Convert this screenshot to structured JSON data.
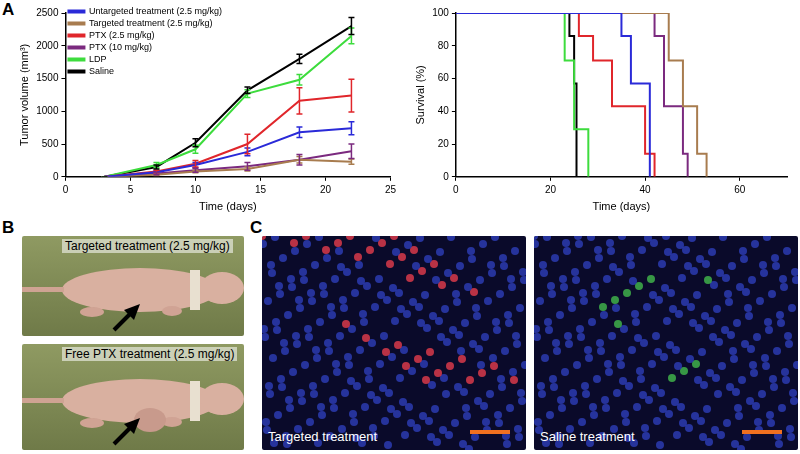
{
  "chart_data": [
    {
      "type": "line",
      "x_label": "Time (days)",
      "y_label": "Tumor volume (mm³)",
      "xlim": [
        0,
        25
      ],
      "xticks": [
        0,
        5,
        10,
        15,
        20,
        25
      ],
      "ylim": [
        0,
        2500
      ],
      "yticks": [
        0,
        500,
        1000,
        1500,
        2000,
        2500
      ],
      "grid": false,
      "legend": "upper left",
      "x": [
        3,
        7,
        10,
        14,
        18,
        22
      ],
      "series": [
        {
          "name": "Untargeted treatment (2.5 mg/kg)",
          "color": "#2a2ad8",
          "values": [
            0,
            70,
            180,
            380,
            680,
            740
          ],
          "errors": [
            0,
            20,
            40,
            60,
            80,
            100
          ]
        },
        {
          "name": "Targeted treatment (2.5 mg/kg)",
          "color": "#a87c4f",
          "values": [
            0,
            30,
            80,
            120,
            260,
            230
          ],
          "errors": [
            0,
            10,
            20,
            30,
            50,
            40
          ]
        },
        {
          "name": "PTX (2.5 mg/kg)",
          "color": "#e0262b",
          "values": [
            0,
            80,
            200,
            500,
            1160,
            1240
          ],
          "errors": [
            0,
            20,
            50,
            150,
            200,
            250
          ]
        },
        {
          "name": "PTX (10 mg/kg)",
          "color": "#7b2a7f",
          "values": [
            0,
            50,
            100,
            160,
            260,
            390
          ],
          "errors": [
            0,
            20,
            30,
            60,
            80,
            110
          ]
        },
        {
          "name": "LDP",
          "color": "#3ddc3d",
          "values": [
            0,
            180,
            420,
            1270,
            1480,
            2150
          ],
          "errors": [
            0,
            40,
            60,
            60,
            80,
            120
          ]
        },
        {
          "name": "Saline",
          "color": "#000000",
          "values": [
            0,
            150,
            520,
            1320,
            1800,
            2300
          ],
          "errors": [
            0,
            30,
            60,
            50,
            70,
            130
          ]
        }
      ]
    },
    {
      "type": "line",
      "x_label": "Time (days)",
      "y_label": "Survival (%)",
      "xlim": [
        0,
        70
      ],
      "xticks": [
        0,
        20,
        40,
        60
      ],
      "ylim": [
        0,
        100
      ],
      "yticks": [
        0,
        20,
        40,
        60,
        80,
        100
      ],
      "grid": false,
      "line_style": "step",
      "series": [
        {
          "color": "#2a2ad8",
          "x": [
            0,
            35,
            37,
            41
          ],
          "values": [
            100,
            86,
            57,
            0
          ]
        },
        {
          "color": "#a87c4f",
          "x": [
            0,
            45,
            48,
            51,
            53
          ],
          "values": [
            100,
            71,
            43,
            14,
            0
          ]
        },
        {
          "color": "#e0262b",
          "x": [
            0,
            26,
            29,
            33,
            40,
            42
          ],
          "values": [
            100,
            86,
            71,
            43,
            14,
            0
          ]
        },
        {
          "color": "#7b2a7f",
          "x": [
            0,
            42,
            44,
            48,
            49
          ],
          "values": [
            100,
            86,
            43,
            14,
            0
          ]
        },
        {
          "color": "#3ddc3d",
          "x": [
            0,
            23,
            25,
            28
          ],
          "values": [
            100,
            71,
            29,
            0
          ]
        },
        {
          "color": "#000000",
          "x": [
            0,
            24,
            25,
            25.5
          ],
          "values": [
            100,
            86,
            57,
            0
          ]
        }
      ]
    }
  ],
  "figure": {
    "panel_labels": [
      "A",
      "B",
      "C"
    ],
    "panel_b": {
      "images": [
        {
          "caption": "Targeted treatment (2.5 mg/kg)"
        },
        {
          "caption": "Free PTX treatment (2.5 mg/kg)"
        }
      ]
    },
    "panel_c": {
      "images": [
        {
          "caption": "Targeted treatment"
        },
        {
          "caption": "Saline treatment"
        }
      ]
    }
  }
}
